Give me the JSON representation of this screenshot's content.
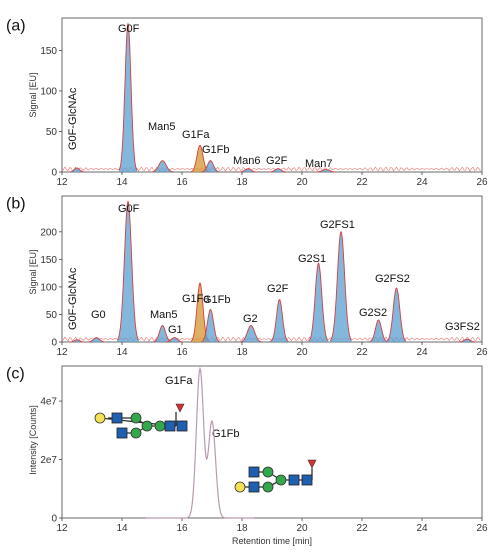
{
  "chart_data": [
    {
      "type": "line",
      "panel_label": "(a)",
      "ylabel": "Signal [EU]",
      "xlim": [
        12,
        26
      ],
      "ylim": [
        0,
        190
      ],
      "xticks": [
        "12",
        "14",
        "16",
        "18",
        "20",
        "22",
        "24",
        "26"
      ],
      "yticks": [
        {
          "v": 0,
          "t": "0"
        },
        {
          "v": 50,
          "t": "50"
        },
        {
          "v": 100,
          "t": "100"
        },
        {
          "v": 150,
          "t": "150"
        }
      ],
      "peaks": [
        {
          "label": "G0F-GlcNAc",
          "x": 12.5,
          "y": 5,
          "color": "#5a9fcf"
        },
        {
          "label": "G0F",
          "x": 14.2,
          "y": 183,
          "color": "#5a9fcf"
        },
        {
          "label": "Man5",
          "x": 15.35,
          "y": 14,
          "color": "#5a9fcf"
        },
        {
          "label": "G1Fa",
          "x": 16.6,
          "y": 33,
          "color": "#d6952e"
        },
        {
          "label": "G1Fb",
          "x": 16.95,
          "y": 14,
          "color": "#5a9fcf"
        },
        {
          "label": "Man6",
          "x": 18.2,
          "y": 4,
          "color": "#5a9fcf"
        },
        {
          "label": "G2F",
          "x": 19.2,
          "y": 4,
          "color": "#5a9fcf"
        },
        {
          "label": "Man7",
          "x": 20.8,
          "y": 3,
          "color": "#5a9fcf"
        }
      ]
    },
    {
      "type": "line",
      "panel_label": "(b)",
      "ylabel": "Signal [EU]",
      "xlim": [
        12,
        26
      ],
      "ylim": [
        0,
        265
      ],
      "xticks": [
        "12",
        "14",
        "16",
        "18",
        "20",
        "22",
        "24",
        "26"
      ],
      "yticks": [
        {
          "v": 0,
          "t": "0"
        },
        {
          "v": 50,
          "t": "50"
        },
        {
          "v": 100,
          "t": "100"
        },
        {
          "v": 150,
          "t": "150"
        },
        {
          "v": 200,
          "t": "200"
        }
      ],
      "peaks": [
        {
          "label": "G0F-GlcNAc",
          "x": 12.5,
          "y": 4,
          "color": "#5a9fcf"
        },
        {
          "label": "G0",
          "x": 13.15,
          "y": 8,
          "color": "#5a9fcf"
        },
        {
          "label": "G0F",
          "x": 14.2,
          "y": 255,
          "color": "#5a9fcf"
        },
        {
          "label": "Man5",
          "x": 15.35,
          "y": 30,
          "color": "#5a9fcf"
        },
        {
          "label": "G1",
          "x": 15.75,
          "y": 8,
          "color": "#5a9fcf"
        },
        {
          "label": "G1Fa",
          "x": 16.6,
          "y": 107,
          "color": "#d6952e"
        },
        {
          "label": "G1Fb",
          "x": 16.95,
          "y": 59,
          "color": "#5a9fcf"
        },
        {
          "label": "G2",
          "x": 18.3,
          "y": 30,
          "color": "#5a9fcf"
        },
        {
          "label": "G2F",
          "x": 19.25,
          "y": 77,
          "color": "#5a9fcf"
        },
        {
          "label": "G2S1",
          "x": 20.55,
          "y": 143,
          "color": "#5a9fcf"
        },
        {
          "label": "G2FS1",
          "x": 21.3,
          "y": 200,
          "color": "#5a9fcf"
        },
        {
          "label": "G2S2",
          "x": 22.55,
          "y": 40,
          "color": "#5a9fcf"
        },
        {
          "label": "G2FS2",
          "x": 23.15,
          "y": 98,
          "color": "#5a9fcf"
        },
        {
          "label": "G3FS2",
          "x": 25.5,
          "y": 5,
          "color": "#5a9fcf"
        }
      ]
    },
    {
      "type": "line",
      "panel_label": "(c)",
      "xlabel": "Retention time [min]",
      "ylabel": "Intensity [Counts]",
      "xlim": [
        12,
        26
      ],
      "ylim": [
        0,
        52000000
      ],
      "xticks": [
        "12",
        "14",
        "16",
        "18",
        "20",
        "22",
        "24",
        "26"
      ],
      "yticks": [
        {
          "v": 0,
          "t": "0"
        },
        {
          "v": 20000000,
          "t": "2e7"
        },
        {
          "v": 40000000,
          "t": "4e7"
        }
      ],
      "trace_range": [
        14.8,
        18.4
      ],
      "peaks": [
        {
          "label": "G1Fa",
          "x": 16.6,
          "y": 51000000,
          "color": "#b89ab0"
        },
        {
          "label": "G1Fb",
          "x": 17.0,
          "y": 33000000,
          "color": "#b89ab0"
        }
      ]
    }
  ]
}
